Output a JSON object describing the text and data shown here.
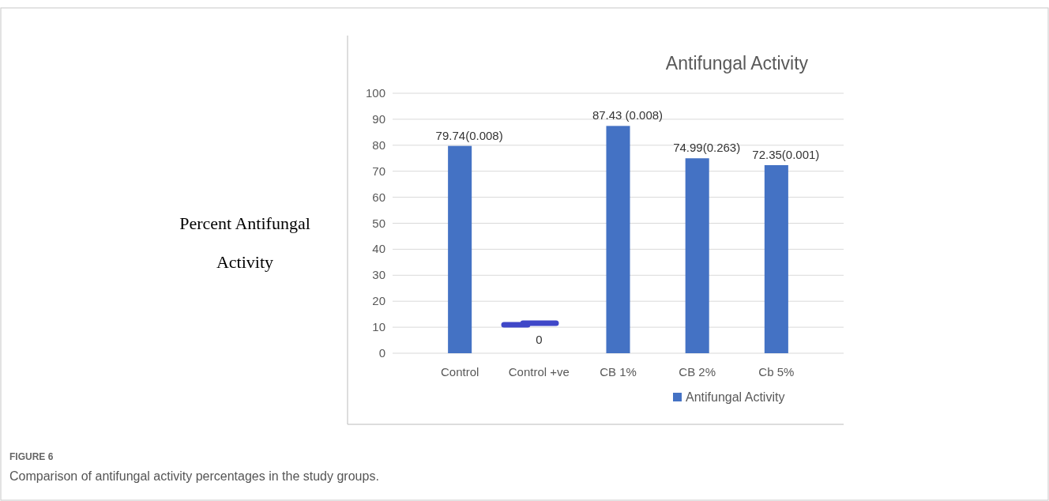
{
  "chart_data": {
    "type": "bar",
    "title": "Antifungal Activity",
    "ylabel": "Percent Antifungal Activity",
    "categories": [
      "Control",
      "Control +ve",
      "CB 1%",
      "CB 2%",
      "Cb 5%"
    ],
    "series": [
      {
        "name": "Antifungal Activity",
        "color": "#4472c4",
        "values": [
          79.74,
          0,
          87.43,
          74.99,
          72.35
        ],
        "value_labels": [
          "79.74(0.008)",
          "0",
          "87.43 (0.008)",
          "74.99(0.263)",
          "72.35(0.001)"
        ]
      }
    ],
    "ylim": [
      0,
      100
    ],
    "yticks": [
      0,
      10,
      20,
      30,
      40,
      50,
      60,
      70,
      80,
      90,
      100
    ],
    "grid": "y",
    "legend": "bottom",
    "annotations": [
      "FIGURE 6",
      "Comparison of antifungal activity percentages in the study groups."
    ]
  }
}
